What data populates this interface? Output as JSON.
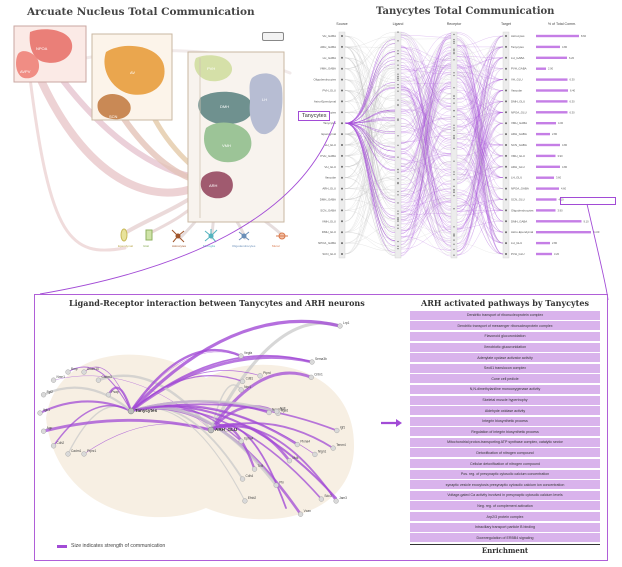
{
  "panels": {
    "arcuate": {
      "title": "Arcuate Nucleus Total Communication",
      "regions_left": [
        "NPOA",
        "AVPV"
      ],
      "regions_mid": [
        "AV",
        "SCN"
      ],
      "regions_right": [
        "PVH",
        "DMH",
        "LH",
        "VMH",
        "ARH"
      ],
      "cell_types": [
        "Ependymal",
        "Glial",
        "Astrocytes",
        "Microglia",
        "Oligodendrocytes",
        "Mural"
      ]
    },
    "tanycytes_total": {
      "title": "Tanycytes Total Communication",
      "columns": [
        "Source",
        "Ligand",
        "Receptor",
        "Target",
        "% of Total Comm."
      ],
      "highlight_label": "Tanycytes",
      "source_labels": [
        "VH_GABA",
        "ARH_GABA",
        "LH_GABA",
        "VMH_GABA",
        "Oligodendrocytes",
        "PVH_GLU",
        "Astro-Ependymal",
        "Astrocytes",
        "Tanycytes",
        "Ependymal",
        "LH_GLU",
        "PVH_GABA",
        "VH_GLU",
        "Vascular",
        "ARH_GLU",
        "DMH_GABA",
        "SCN_GABA",
        "VMH_GLU",
        "DMH_GLU",
        "NPOA_GABA",
        "SCN_GLU"
      ],
      "target_labels": [
        "Astrocytes",
        "Tanycytes",
        "LH_GABA",
        "PVH_GABA",
        "VH_GLU",
        "Vascular",
        "DMH_GLU",
        "NPOA_GLU",
        "VMH_GABA",
        "ARH_GABA",
        "SCN_GABA",
        "VMH_GLU",
        "ARH_GLU",
        "LH_GLU",
        "NPOA_GABA",
        "SCN_GLU",
        "Oligodendrocytes",
        "DMH_GABA",
        "Astro-Ependymal",
        "LH_GLU",
        "PVH_GLU"
      ]
    },
    "ligand_receptor": {
      "title": "Ligand-Receptor interaction between Tanycytes and ARH neurons",
      "center_labels": [
        "Tanycytes",
        "ARH_GLU"
      ],
      "node_labels": [
        "Lrp1",
        "Vegfa",
        "Sema3b",
        "Ptprz1",
        "Cadm1",
        "Cdh2",
        "App",
        "Itgb1",
        "Fgf2",
        "Nrxn1",
        "Bmp",
        "Adam10",
        "Cadm3",
        "Psap",
        "Nlgn1",
        "Tenm4",
        "Efnb2",
        "Ptprd",
        "Itga6",
        "Sdc3",
        "Cdh4",
        "Cntn1",
        "Ncam1",
        "Vcan",
        "Nrp1",
        "Epha4",
        "Cd81",
        "Jam3",
        "Ptn",
        "Igf1",
        "Mdk",
        "Plxna4",
        "Ngfr",
        "Tcf4"
      ],
      "legend": "Size indicates strength of communication"
    },
    "pathways": {
      "title": "ARH activated pathways by Tanycytes",
      "xlabel": "Enrichment"
    }
  },
  "chart_data": [
    {
      "type": "bar",
      "title": "ARH activated pathways by Tanycytes",
      "xlabel": "Enrichment",
      "categories": [
        "Dendritic transport of ribonucleoprotein complex",
        "Dendritic transport of messenger ribonucleoprotein complex",
        "Flavonoid glucuronidation",
        "Xenobiotic glucuronidation",
        "Adenylate cyclase activator activity",
        "Sec61 translocon complex",
        "Cone cell pedicle",
        "N,N-dimethylaniline monooxygenase activity",
        "Skeletal muscle hypertrophy",
        "Aldehyde oxidase activity",
        "Integrin biosynthetic process",
        "Regulation of integrin biosynthetic process",
        "Mitochondrial proton-transporting ATP synthase complex, catalytic sector",
        "Detoxification of nitrogen compound",
        "Cellular detoxification of nitrogen compound",
        "Pos. reg. of presynaptic cytosolic calcium concentration",
        "synaptic vesicle exocytosis presynaptic cytosolic calcium ion concentration",
        "Voltage-gated Ca activity involved in presynaptic cytosolic calcium levels",
        "Neg. reg. of complement activation",
        "Arp2/3 protein complex",
        "Intraciliary transport particle B binding",
        "Downregulation of ERBB4 signaling"
      ],
      "values": [
        1,
        1,
        1,
        1,
        1,
        1,
        1,
        1,
        1,
        1,
        1,
        1,
        1,
        1,
        1,
        1,
        1,
        1,
        1,
        1,
        1,
        1
      ]
    },
    {
      "type": "bar",
      "title": "% of Total Comm.",
      "categories": [
        "Astrocytes",
        "Tanycytes",
        "LH_GABA",
        "PVH_GABA",
        "VH_GLU",
        "Vascular",
        "DMH_GLU",
        "NPOA_GLU",
        "VMH_GABA",
        "ARH_GABA",
        "SCN_GABA",
        "VMH_GLU",
        "ARH_GLU",
        "LH_GLU",
        "NPOA_GABA",
        "SCN_GLU",
        "Oligodendrocytes",
        "DMH_GABA",
        "Astro-Ependymal",
        "LH_GLU",
        "PVH_GLU"
      ],
      "values": [
        8.6,
        4.8,
        6.2,
        2.0,
        6.3,
        6.4,
        6.3,
        6.3,
        4.0,
        2.8,
        4.8,
        3.9,
        4.8,
        3.6,
        4.6,
        4.1,
        3.9,
        9.1,
        11.0,
        2.8,
        3.2
      ]
    }
  ],
  "colors": {
    "accent": "#a24bd6",
    "light_purple": "#d9b3ec",
    "region_orange": "#e9a24b",
    "region_pink": "#ec7f7f",
    "panel_border": "#b05fd8"
  }
}
